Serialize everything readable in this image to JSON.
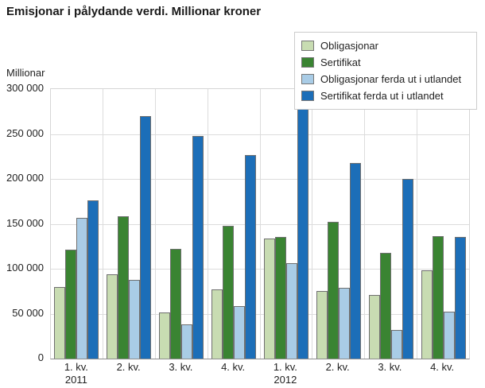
{
  "title": "Emisjonar i pålydande verdi. Millionar kroner",
  "y_axis": {
    "unit_label": "Millionar",
    "tick_labels": [
      "300 000",
      "250 000",
      "200 000",
      "150 000",
      "100 000",
      "50 000",
      "0"
    ],
    "tick_values": [
      300000,
      250000,
      200000,
      150000,
      100000,
      50000,
      0
    ]
  },
  "x_axis": {
    "categories": [
      {
        "label": "1. kv.",
        "year": "2011"
      },
      {
        "label": "2. kv.",
        "year": ""
      },
      {
        "label": "3. kv.",
        "year": ""
      },
      {
        "label": "4. kv.",
        "year": ""
      },
      {
        "label": "1. kv.",
        "year": "2012"
      },
      {
        "label": "2. kv.",
        "year": ""
      },
      {
        "label": "3. kv.",
        "year": ""
      },
      {
        "label": "4. kv.",
        "year": ""
      }
    ]
  },
  "colors": {
    "obligasjonar": "#c8dcb2",
    "sertifikat": "#3a8432",
    "obligasjonar_utland": "#a9cce6",
    "sertifikat_utland": "#1c6eb8",
    "grid": "#dcdcdc",
    "bar_border": "#6f6f6f",
    "axis_line": "#8f8f8f"
  },
  "chart_data": {
    "type": "bar",
    "title": "Emisjonar i pålydande verdi. Millionar kroner",
    "ylabel": "Millionar",
    "xlabel": "",
    "ylim": [
      0,
      300000
    ],
    "ystep": 50000,
    "grid": true,
    "legend_position": "top-right",
    "categories": [
      "1. kv. 2011",
      "2. kv. 2011",
      "3. kv. 2011",
      "4. kv. 2011",
      "1. kv. 2012",
      "2. kv. 2012",
      "3. kv. 2012",
      "4. kv. 2012"
    ],
    "series": [
      {
        "name": "Obligasjonar",
        "color": "#c8dcb2",
        "values": [
          80000,
          94000,
          51000,
          77000,
          134000,
          75000,
          71000,
          98000
        ]
      },
      {
        "name": "Sertifikat",
        "color": "#3a8432",
        "values": [
          121000,
          158000,
          122000,
          148000,
          135000,
          152000,
          118000,
          136000
        ]
      },
      {
        "name": "Obligasjonar ferda ut i utlandet",
        "color": "#a9cce6",
        "values": [
          157000,
          88000,
          38000,
          58000,
          106000,
          79000,
          32000,
          52000
        ]
      },
      {
        "name": "Sertifikat ferda ut i utlandet",
        "color": "#1c6eb8",
        "values": [
          176000,
          270000,
          248000,
          227000,
          278000,
          218000,
          200000,
          135000
        ]
      }
    ]
  }
}
